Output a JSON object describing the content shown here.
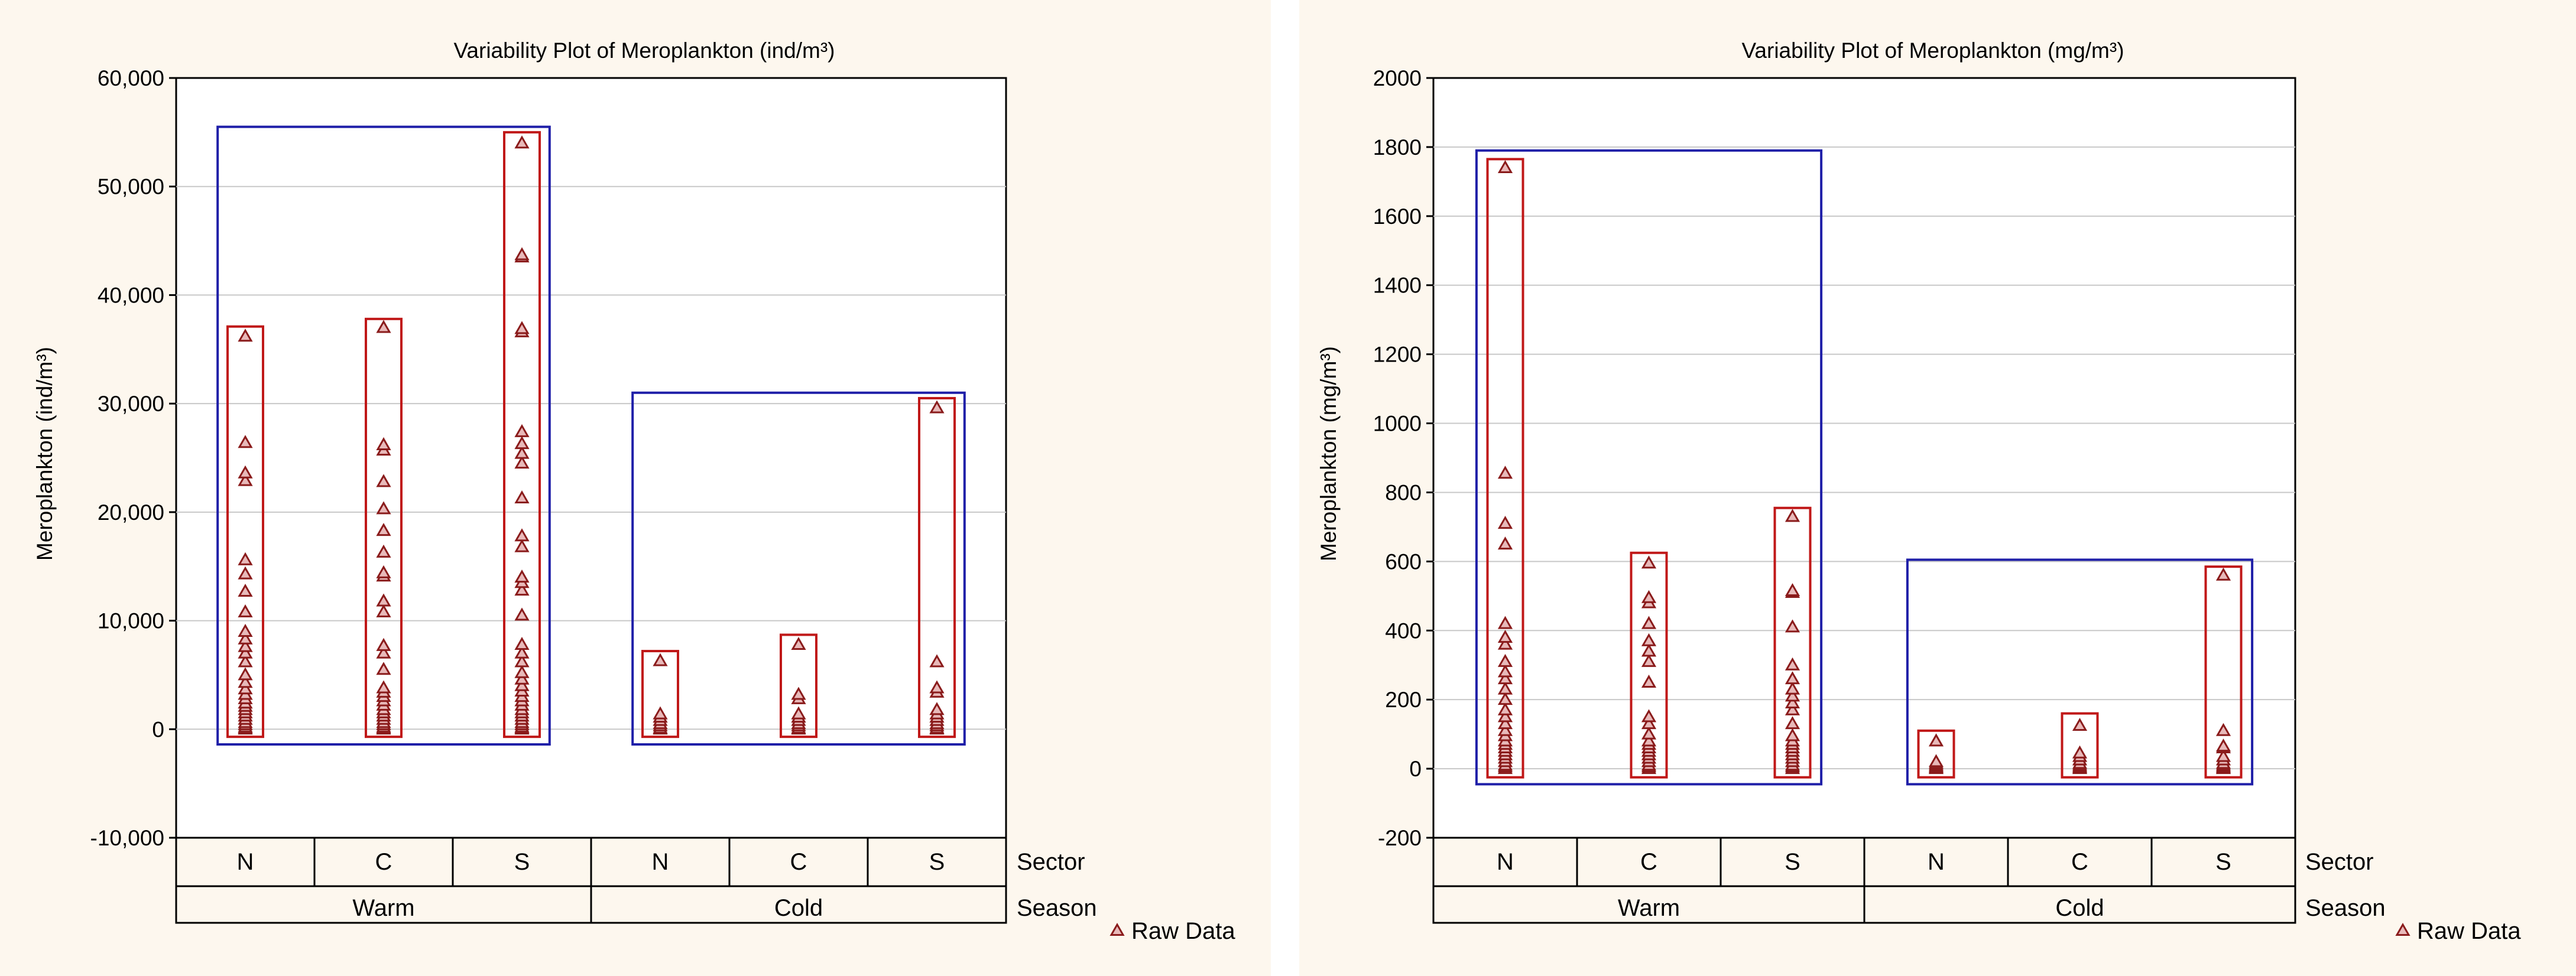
{
  "chart_data": [
    {
      "type": "scatter",
      "title": "Variability Plot of Meroplankton (ind/m³)",
      "ylabel": "Meroplankton (ind/m³)",
      "ylim": [
        -10000,
        60000
      ],
      "yticks": [
        60000,
        50000,
        40000,
        30000,
        20000,
        10000,
        0,
        -10000
      ],
      "ytick_labels": [
        "60,000",
        "50,000",
        "40,000",
        "30,000",
        "20,000",
        "10,000",
        "0",
        "-10,000"
      ],
      "row_labels": {
        "sector": "Sector",
        "season": "Season"
      },
      "legend": "Raw Data",
      "seasons": [
        {
          "name": "Warm",
          "box": [
            -1400,
            55500
          ]
        },
        {
          "name": "Cold",
          "box": [
            -1400,
            31000
          ]
        }
      ],
      "groups": [
        {
          "season": "Warm",
          "sector": "N",
          "box": [
            -700,
            37100
          ],
          "values": [
            0,
            100,
            200,
            400,
            600,
            900,
            1200,
            1500,
            1800,
            2100,
            2400,
            2800,
            3200,
            3700,
            4300,
            5000,
            6200,
            7000,
            7600,
            8300,
            9000,
            10800,
            12700,
            14300,
            15600,
            22900,
            23600,
            26400,
            36200
          ]
        },
        {
          "season": "Warm",
          "sector": "C",
          "box": [
            -700,
            37800
          ],
          "values": [
            0,
            100,
            200,
            400,
            600,
            900,
            1200,
            1500,
            1800,
            2200,
            2600,
            3000,
            3400,
            3800,
            5500,
            7000,
            7700,
            10800,
            11800,
            14100,
            14400,
            16300,
            18300,
            20300,
            22800,
            25700,
            26200,
            37000
          ]
        },
        {
          "season": "Warm",
          "sector": "S",
          "box": [
            -700,
            55000
          ],
          "values": [
            0,
            100,
            200,
            400,
            600,
            900,
            1200,
            1500,
            1800,
            2200,
            2600,
            3000,
            3500,
            4000,
            4600,
            5200,
            6200,
            7000,
            7800,
            10500,
            12800,
            13500,
            14000,
            16800,
            17800,
            21300,
            24500,
            25400,
            26300,
            27400,
            36600,
            36900,
            43500,
            43700,
            54000
          ]
        },
        {
          "season": "Cold",
          "sector": "N",
          "box": [
            -700,
            7200
          ],
          "values": [
            0,
            100,
            300,
            500,
            800,
            1100,
            1400,
            6300
          ]
        },
        {
          "season": "Cold",
          "sector": "C",
          "box": [
            -700,
            8700
          ],
          "values": [
            0,
            100,
            300,
            500,
            800,
            1100,
            1400,
            2800,
            3200,
            7800
          ]
        },
        {
          "season": "Cold",
          "sector": "S",
          "box": [
            -700,
            30500
          ],
          "values": [
            0,
            100,
            300,
            500,
            800,
            1100,
            1400,
            1800,
            3400,
            3800,
            6200,
            29600
          ]
        }
      ]
    },
    {
      "type": "scatter",
      "title": "Variability Plot of Meroplankton (mg/m³)",
      "ylabel": "Meroplankton (mg/m³)",
      "ylim": [
        -200,
        2000
      ],
      "yticks": [
        2000,
        1800,
        1600,
        1400,
        1200,
        1000,
        800,
        600,
        400,
        200,
        0,
        -200
      ],
      "ytick_labels": [
        "2000",
        "1800",
        "1600",
        "1400",
        "1200",
        "1000",
        "800",
        "600",
        "400",
        "200",
        "0",
        "-200"
      ],
      "row_labels": {
        "sector": "Sector",
        "season": "Season"
      },
      "legend": "Raw Data",
      "seasons": [
        {
          "name": "Warm",
          "box": [
            -45,
            1790
          ]
        },
        {
          "name": "Cold",
          "box": [
            -45,
            605
          ]
        }
      ],
      "groups": [
        {
          "season": "Warm",
          "sector": "N",
          "box": [
            -25,
            1765
          ],
          "values": [
            0,
            5,
            10,
            20,
            30,
            40,
            50,
            60,
            70,
            80,
            95,
            110,
            130,
            150,
            170,
            200,
            230,
            260,
            280,
            310,
            360,
            380,
            420,
            650,
            710,
            855,
            1740
          ]
        },
        {
          "season": "Warm",
          "sector": "C",
          "box": [
            -25,
            625
          ],
          "values": [
            0,
            5,
            10,
            20,
            30,
            40,
            50,
            60,
            70,
            80,
            100,
            130,
            150,
            250,
            310,
            340,
            370,
            420,
            480,
            495,
            595
          ]
        },
        {
          "season": "Warm",
          "sector": "S",
          "box": [
            -25,
            755
          ],
          "values": [
            0,
            5,
            10,
            20,
            30,
            40,
            50,
            60,
            70,
            80,
            95,
            130,
            170,
            190,
            210,
            230,
            260,
            300,
            410,
            510,
            515,
            730
          ]
        },
        {
          "season": "Cold",
          "sector": "N",
          "box": [
            -25,
            110
          ],
          "values": [
            0,
            3,
            6,
            10,
            15,
            20,
            80
          ]
        },
        {
          "season": "Cold",
          "sector": "C",
          "box": [
            -25,
            160
          ],
          "values": [
            0,
            3,
            6,
            10,
            15,
            25,
            35,
            45,
            125
          ]
        },
        {
          "season": "Cold",
          "sector": "S",
          "box": [
            -25,
            585
          ],
          "values": [
            0,
            3,
            6,
            10,
            15,
            25,
            35,
            60,
            65,
            110,
            560
          ]
        }
      ]
    }
  ],
  "colors": {
    "panel_bg": "#fdf7ee",
    "season_box": "#1f1fa8",
    "sector_box": "#c01818",
    "point_stroke": "#8a1b1b",
    "point_fill": "#e8b9b9",
    "grid": "#c8c8c8"
  }
}
